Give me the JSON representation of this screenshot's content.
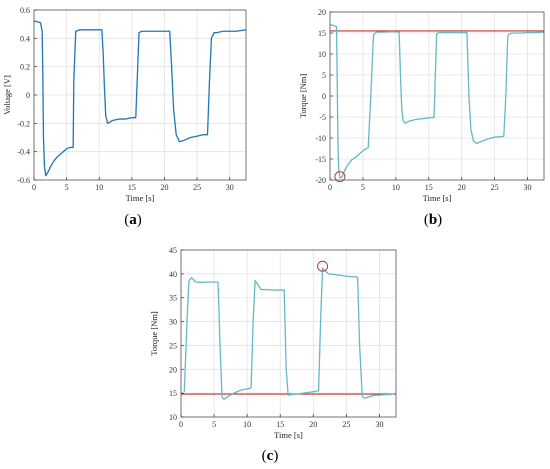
{
  "figure": {
    "captions": {
      "a": {
        "open": "(",
        "letter": "a",
        "close": ")"
      },
      "b": {
        "open": "(",
        "letter": "b",
        "close": ")"
      },
      "c": {
        "open": "(",
        "letter": "c",
        "close": ")"
      }
    }
  },
  "chart_data": [
    {
      "id": "a",
      "type": "line",
      "xlabel": "Time [s]",
      "ylabel": "Voltage [V]",
      "xlim": [
        0,
        32.5
      ],
      "ylim": [
        -0.6,
        0.6
      ],
      "xticks": [
        0,
        5,
        10,
        15,
        20,
        25,
        30
      ],
      "yticks": [
        -0.6,
        -0.4,
        -0.2,
        0,
        0.2,
        0.4,
        0.6
      ],
      "ytick_labels": [
        "-0.6",
        "-0.4",
        "-0.2",
        "0",
        "0.2",
        "0.4",
        "0.6"
      ],
      "grid": true,
      "series": [
        {
          "color": "#1f77b4",
          "x": [
            0,
            0.3,
            1.0,
            1.25,
            1.35,
            1.45,
            1.6,
            1.8,
            2.2,
            2.6,
            3.0,
            3.5,
            4.0,
            4.5,
            5.0,
            5.5,
            5.75,
            6.0,
            6.1,
            6.4,
            7,
            8,
            9,
            10,
            10.4,
            10.6,
            10.8,
            11.0,
            11.3,
            11.7,
            12,
            13,
            14,
            15,
            15.6,
            15.9,
            16.1,
            16.5,
            17,
            18,
            19,
            20,
            20.8,
            21.1,
            21.4,
            21.8,
            22.3,
            23,
            24,
            25,
            26,
            26.6,
            26.9,
            27.2,
            27.6,
            28,
            29,
            30,
            31,
            32.5
          ],
          "y": [
            0.52,
            0.52,
            0.51,
            0.45,
            0.15,
            -0.3,
            -0.5,
            -0.57,
            -0.54,
            -0.5,
            -0.47,
            -0.44,
            -0.42,
            -0.4,
            -0.38,
            -0.37,
            -0.37,
            -0.37,
            0.1,
            0.45,
            0.46,
            0.46,
            0.46,
            0.46,
            0.46,
            0.3,
            0.05,
            -0.15,
            -0.2,
            -0.19,
            -0.18,
            -0.17,
            -0.17,
            -0.16,
            -0.16,
            0.2,
            0.44,
            0.45,
            0.45,
            0.45,
            0.45,
            0.45,
            0.45,
            0.2,
            -0.1,
            -0.28,
            -0.33,
            -0.32,
            -0.3,
            -0.29,
            -0.28,
            -0.28,
            0.1,
            0.4,
            0.44,
            0.44,
            0.45,
            0.45,
            0.45,
            0.46
          ]
        }
      ],
      "markers": []
    },
    {
      "id": "b",
      "type": "line",
      "xlabel": "Time [s]",
      "ylabel": "Torque [Nm]",
      "xlim": [
        0,
        32.5
      ],
      "ylim": [
        -20,
        20
      ],
      "xticks": [
        0,
        5,
        10,
        15,
        20,
        25,
        30
      ],
      "yticks": [
        -20,
        -15,
        -10,
        -5,
        0,
        5,
        10,
        15,
        20
      ],
      "ytick_labels": [
        "-20",
        "-15",
        "-10",
        "-5",
        "0",
        "5",
        "10",
        "15",
        "20"
      ],
      "grid": true,
      "hline": {
        "y": 15.5,
        "color": "#c0392b"
      },
      "series": [
        {
          "color": "#66b8c8",
          "x": [
            0,
            0.5,
            1.0,
            1.1,
            1.2,
            1.3,
            1.5,
            1.8,
            2.3,
            2.8,
            3.3,
            4.0,
            4.6,
            5.2,
            5.8,
            6.2,
            6.6,
            7,
            8,
            9,
            10,
            10.5,
            10.7,
            10.9,
            11.1,
            11.4,
            12,
            13,
            14,
            15,
            15.8,
            16.0,
            16.2,
            16.5,
            17,
            18,
            19,
            20,
            20.8,
            21.1,
            21.4,
            21.8,
            22.3,
            23,
            24,
            25,
            26.4,
            26.7,
            27.0,
            27.4,
            28,
            29,
            30,
            31,
            32.5
          ],
          "y": [
            17,
            16.8,
            16.5,
            3,
            -10,
            -17,
            -19.5,
            -19.3,
            -17.5,
            -16.2,
            -15.2,
            -14.5,
            -13.6,
            -12.8,
            -12.3,
            0,
            14.5,
            15.2,
            15.2,
            15.3,
            15.3,
            15.2,
            5,
            -3,
            -5.8,
            -6.5,
            -6,
            -5.6,
            -5.4,
            -5.2,
            -5.1,
            5,
            14.8,
            15.1,
            15.1,
            15.1,
            15.1,
            15.1,
            15.1,
            0,
            -8,
            -10.8,
            -11.3,
            -10.8,
            -10.2,
            -9.8,
            -9.6,
            0,
            14.3,
            14.9,
            15.0,
            15.0,
            15.1,
            15.1,
            15.2
          ]
        }
      ],
      "markers": [
        {
          "x": 1.5,
          "y": -19.2,
          "color": "#c0392b"
        }
      ]
    },
    {
      "id": "c",
      "type": "line",
      "xlabel": "Time [s]",
      "ylabel": "Torque [Nm]",
      "xlim": [
        0,
        32.5
      ],
      "ylim": [
        10,
        45
      ],
      "xticks": [
        0,
        5,
        10,
        15,
        20,
        25,
        30
      ],
      "yticks": [
        10,
        15,
        20,
        25,
        30,
        35,
        40,
        45
      ],
      "ytick_labels": [
        "10",
        "15",
        "20",
        "25",
        "30",
        "35",
        "40",
        "45"
      ],
      "grid": true,
      "hline": {
        "y": 14.8,
        "color": "#c0392b"
      },
      "series": [
        {
          "color": "#66b8c8",
          "x": [
            0.5,
            0.9,
            1.2,
            1.6,
            2.2,
            3,
            4,
            5,
            5.6,
            5.9,
            6.2,
            6.5,
            7,
            8,
            9,
            10,
            10.6,
            10.9,
            11.2,
            11.6,
            12.1,
            13,
            14,
            15,
            15.6,
            15.9,
            16.2,
            16.8,
            18,
            19,
            20,
            20.8,
            21.1,
            21.4,
            21.8,
            22.3,
            23,
            24,
            25,
            26,
            26.7,
            27.0,
            27.4,
            27.8,
            28.3,
            29,
            30,
            31,
            32.2
          ],
          "y": [
            15.2,
            30,
            38.5,
            39.2,
            38.3,
            38.2,
            38.3,
            38.3,
            38.3,
            25,
            14.2,
            13.7,
            14.2,
            15.0,
            15.6,
            15.9,
            16.1,
            30,
            38.6,
            37.8,
            36.7,
            36.7,
            36.6,
            36.6,
            36.6,
            20,
            14.6,
            14.7,
            14.9,
            15.1,
            15.3,
            15.5,
            30,
            41.2,
            40.6,
            40.0,
            39.9,
            39.7,
            39.5,
            39.4,
            39.3,
            25,
            14.3,
            13.9,
            14.2,
            14.5,
            14.6,
            14.7,
            14.8
          ]
        }
      ],
      "markers": [
        {
          "x": 21.4,
          "y": 41.6,
          "color": "#c0392b"
        }
      ]
    }
  ]
}
